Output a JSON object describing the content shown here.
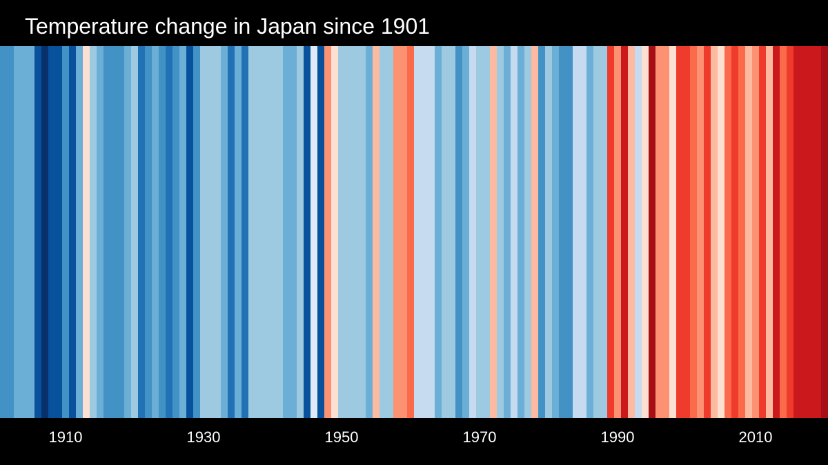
{
  "title": "Temperature change in Japan since 1901",
  "chart_data": {
    "type": "heatmap",
    "title": "Temperature change in Japan since 1901",
    "x_start_year": 1901,
    "x_end_year": 2020,
    "tick_labels": [
      "1910",
      "1930",
      "1950",
      "1970",
      "1990",
      "2010"
    ],
    "color_scale": {
      "-4": "#08306b",
      "-3": "#08519c",
      "-2": "#2171b5",
      "-1": "#4292c6",
      "0": "#6baed6",
      "1": "#9ecae1",
      "2": "#c6dbef",
      "3": "#deebf7",
      "4": "#fee0d2",
      "5": "#fcbba1",
      "6": "#fc9272",
      "7": "#fb6a4a",
      "8": "#ef3b2c",
      "9": "#cb181d",
      "10": "#a50f15",
      "11": "#67000d"
    },
    "anomaly_levels": [
      -1,
      -1,
      0,
      0,
      0,
      -3,
      -4,
      -3,
      -3,
      -1,
      -3,
      0,
      4,
      1,
      0,
      -1,
      -1,
      -1,
      0,
      1,
      -2,
      -1,
      0,
      -1,
      -2,
      -1,
      0,
      -3,
      -1,
      1,
      1,
      1,
      0,
      -2,
      0,
      -2,
      1,
      1,
      1,
      1,
      1,
      0,
      0,
      1,
      -3,
      3,
      -3,
      6,
      4,
      1,
      1,
      1,
      1,
      0,
      5,
      1,
      1,
      6,
      6,
      7,
      2,
      2,
      2,
      0,
      1,
      1,
      -1,
      0,
      2,
      1,
      1,
      5,
      1,
      0,
      2,
      0,
      1,
      5,
      -1,
      1,
      0,
      -1,
      -1,
      2,
      2,
      0,
      1,
      1,
      8,
      6,
      9,
      5,
      2,
      4,
      10,
      6,
      6,
      4,
      8,
      8,
      7,
      6,
      8,
      5,
      4,
      7,
      8,
      7,
      5,
      6,
      8,
      5,
      9,
      7,
      8,
      9,
      9,
      9,
      9,
      10
    ]
  }
}
